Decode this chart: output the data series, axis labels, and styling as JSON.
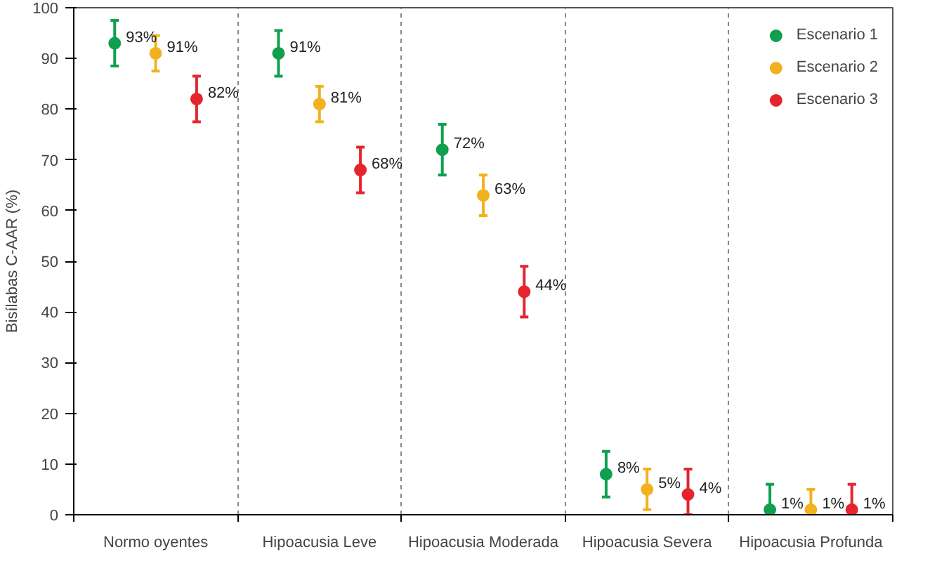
{
  "chart_data": {
    "type": "scatter",
    "ylabel": "Bisílabas C-AAR (%)",
    "categories": [
      "Normo oyentes",
      "Hipoacusia Leve",
      "Hipoacusia Moderada",
      "Hipoacusia Severa",
      "Hipoacusia Profunda"
    ],
    "series": [
      {
        "name": "Escenario 1",
        "color": "#0e9f4f",
        "values": [
          93,
          91,
          72,
          8,
          1
        ],
        "errors": [
          4.5,
          4.5,
          5,
          4.5,
          [
            0,
            6
          ]
        ],
        "value_labels": [
          "93%",
          "91%",
          "72%",
          "8%",
          "1%"
        ]
      },
      {
        "name": "Escenario 2",
        "color": "#f2b21f",
        "values": [
          91,
          81,
          63,
          5,
          1
        ],
        "errors": [
          3.5,
          3.5,
          4,
          4,
          [
            0,
            5
          ]
        ],
        "value_labels": [
          "91%",
          "81%",
          "63%",
          "5%",
          "1%"
        ]
      },
      {
        "name": "Escenario 3",
        "color": "#e5252d",
        "values": [
          82,
          68,
          44,
          4,
          1
        ],
        "errors": [
          4.5,
          4.5,
          5,
          [
            0,
            9
          ],
          [
            0,
            6
          ]
        ],
        "value_labels": [
          "82%",
          "68%",
          "44%",
          "4%",
          "1%"
        ]
      }
    ],
    "ylim": [
      0,
      100
    ],
    "yticks": [
      0,
      10,
      20,
      30,
      40,
      50,
      60,
      70,
      80,
      90,
      100
    ],
    "grid": "x",
    "legend": "top right",
    "marker": "circle"
  }
}
